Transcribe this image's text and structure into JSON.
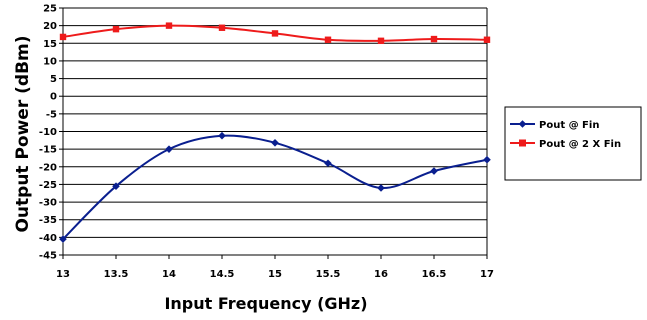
{
  "chart_data": {
    "type": "line",
    "title": "",
    "xlabel": "Input Frequency (GHz)",
    "ylabel": "Output Power (dBm)",
    "x": [
      13,
      13.5,
      14,
      14.5,
      15,
      15.5,
      16,
      16.5,
      17
    ],
    "x_tick_labels": [
      "13",
      "13.5",
      "14",
      "14.5",
      "15",
      "15.5",
      "16",
      "16.5",
      "17"
    ],
    "y_tick_labels": [
      "25",
      "20",
      "15",
      "10",
      "5",
      "0",
      "-5",
      "-10",
      "-15",
      "-20",
      "-25",
      "-30",
      "-35",
      "-40",
      "-45"
    ],
    "xlim": [
      13,
      17
    ],
    "ylim": [
      -45,
      25
    ],
    "y_step": 5,
    "grid": "horizontal",
    "legend_position": "right",
    "series": [
      {
        "name": "Pout @ Fin",
        "color": "#0a1f8f",
        "marker": "diamond",
        "values": [
          -40.5,
          -25.5,
          -15,
          -11.2,
          -13.2,
          -19,
          -26,
          -21.2,
          -18
        ]
      },
      {
        "name": "Pout @ 2 X Fin",
        "color": "#ee1b1b",
        "marker": "square",
        "values": [
          16.8,
          19,
          20,
          19.4,
          17.8,
          16,
          15.7,
          16.2,
          16
        ]
      }
    ]
  }
}
